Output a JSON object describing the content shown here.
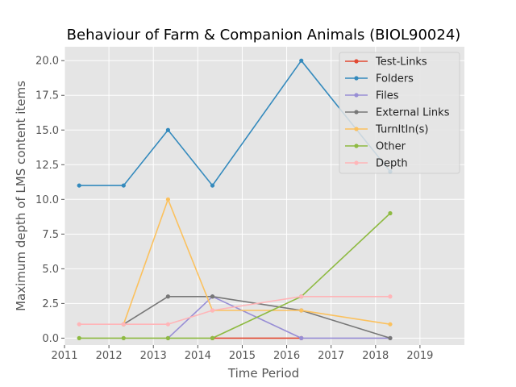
{
  "chart_data": {
    "type": "line",
    "title": "Behaviour of Farm & Companion Animals (BIOL90024)",
    "xlabel": "Time Period",
    "ylabel": "Maximum depth of LMS content items",
    "xlim": [
      2011,
      2020
    ],
    "ylim": [
      -0.5,
      21
    ],
    "xticks": [
      "2011",
      "2012",
      "2013",
      "2014",
      "2015",
      "2016",
      "2017",
      "2018",
      "2019"
    ],
    "yticks": [
      "0.0",
      "2.5",
      "5.0",
      "7.5",
      "10.0",
      "12.5",
      "15.0",
      "17.5",
      "20.0"
    ],
    "grid": true,
    "legend_position": "top-right",
    "x": [
      2011.33,
      2012.33,
      2013.33,
      2014.33,
      2016.33,
      2018.33
    ],
    "series": [
      {
        "name": "Test-Links",
        "color": "#e24a33",
        "x": [
          2014.33,
          2016.33
        ],
        "values": [
          0,
          0
        ]
      },
      {
        "name": "Folders",
        "color": "#348abd",
        "x": [
          2011.33,
          2012.33,
          2013.33,
          2014.33,
          2016.33,
          2018.33
        ],
        "values": [
          11,
          11,
          15,
          11,
          20,
          12
        ]
      },
      {
        "name": "Files",
        "color": "#988ed5",
        "x": [
          2013.33,
          2014.33,
          2016.33,
          2018.33
        ],
        "values": [
          0,
          3,
          0,
          0
        ]
      },
      {
        "name": "External Links",
        "color": "#777777",
        "x": [
          2012.33,
          2013.33,
          2014.33,
          2016.33,
          2018.33
        ],
        "values": [
          1,
          3,
          3,
          2,
          0
        ]
      },
      {
        "name": "TurnItIn(s)",
        "color": "#fbc15e",
        "x": [
          2012.33,
          2013.33,
          2014.33,
          2016.33,
          2018.33
        ],
        "values": [
          1,
          10,
          2,
          2,
          1
        ]
      },
      {
        "name": "Other",
        "color": "#8eba42",
        "x": [
          2011.33,
          2012.33,
          2013.33,
          2014.33,
          2016.33,
          2018.33
        ],
        "values": [
          0,
          0,
          0,
          0,
          3,
          9
        ]
      },
      {
        "name": "Depth",
        "color": "#ffb5b8",
        "x": [
          2011.33,
          2012.33,
          2013.33,
          2014.33,
          2016.33,
          2018.33
        ],
        "values": [
          1,
          1,
          1,
          2,
          3,
          3
        ]
      }
    ]
  }
}
